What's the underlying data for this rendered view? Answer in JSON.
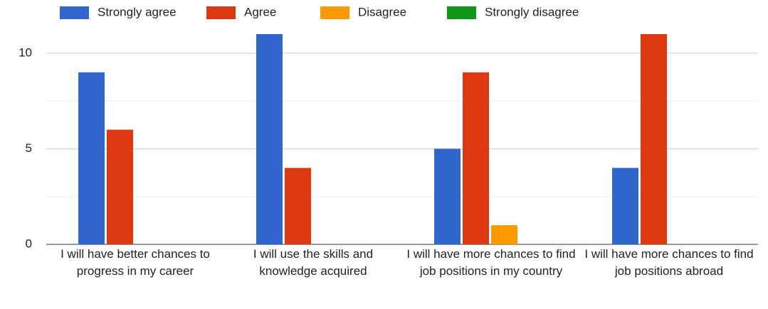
{
  "chart_data": {
    "type": "bar",
    "categories": [
      "I will have better chances to progress in my career",
      "I will use the skills and knowledge acquired",
      "I will have more chances to find job positions in my country",
      "I will have more chances to find job positions abroad"
    ],
    "series": [
      {
        "name": "Strongly agree",
        "color": "#3366cc",
        "values": [
          9,
          11,
          5,
          4
        ]
      },
      {
        "name": "Agree",
        "color": "#dc3912",
        "values": [
          6,
          4,
          9,
          11
        ]
      },
      {
        "name": "Disagree",
        "color": "#ff9900",
        "values": [
          0,
          0,
          1,
          0
        ]
      },
      {
        "name": "Strongly disagree",
        "color": "#109618",
        "values": [
          0,
          0,
          0,
          0
        ]
      }
    ],
    "ylim": [
      0,
      11
    ],
    "yticks": [
      0,
      5,
      10
    ],
    "minor_yticks": [
      2.5,
      7.5
    ],
    "grid": true,
    "legend": "top"
  }
}
